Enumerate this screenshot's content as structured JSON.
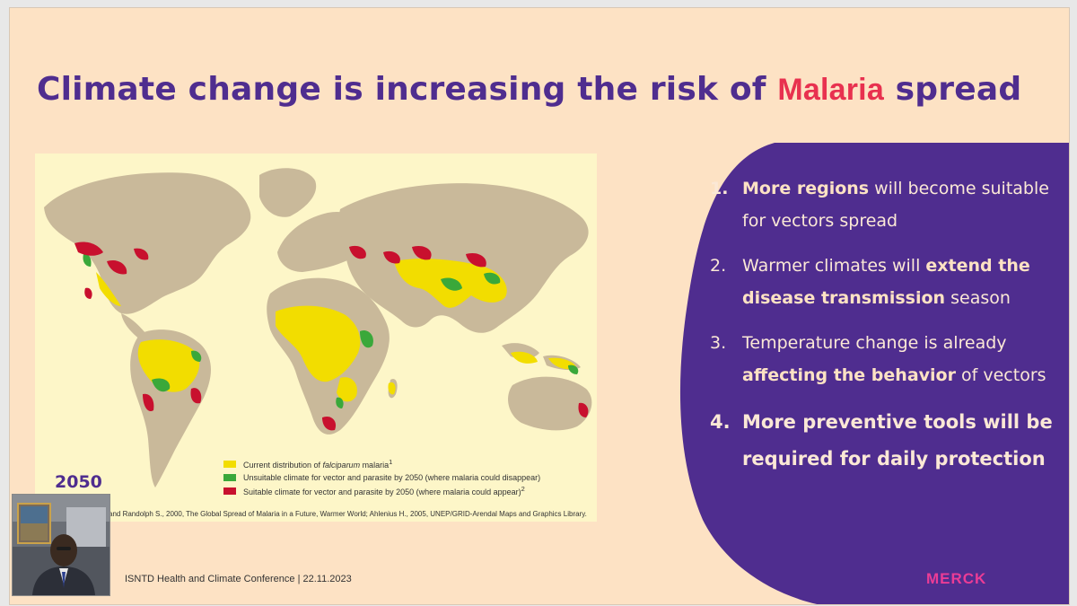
{
  "slide": {
    "title_before": "Climate change is increasing the risk of",
    "title_highlight": "Malaria",
    "title_after": "spread"
  },
  "map": {
    "legend": [
      {
        "text_pre": "Current distribution of ",
        "text_em": "falciparum",
        "text_post": " malaria",
        "sup": "1",
        "color": "#f2dd00"
      },
      {
        "text_pre": "Unsuitable climate for vector and parasite by 2050 (where malaria could disappear)",
        "text_em": "",
        "text_post": "",
        "sup": "",
        "color": "#3aa83a"
      },
      {
        "text_pre": "Suitable climate for vector and parasite by 2050 (where malaria could appear)",
        "text_em": "",
        "text_post": "",
        "sup": "2",
        "color": "#c8102e"
      }
    ],
    "source_text": "and Randolph S., 2000, The Global Spread of Malaria in a Future, Warmer World; Ahlenius H., 2005, UNEP/GRID-Arendal Maps and Graphics Library.",
    "year_label": "2050",
    "land_color": "#c9b99a"
  },
  "points": [
    {
      "num": "1.",
      "parts": [
        {
          "t": "More regions",
          "b": true
        },
        {
          "t": " will become suitable for vectors spread",
          "b": false
        }
      ],
      "big": false,
      "bold_num": true
    },
    {
      "num": "2.",
      "parts": [
        {
          "t": "Warmer climates will ",
          "b": false
        },
        {
          "t": "extend the disease transmission",
          "b": true
        },
        {
          "t": " season",
          "b": false
        }
      ],
      "big": false,
      "bold_num": false
    },
    {
      "num": "3.",
      "parts": [
        {
          "t": "Temperature change is already ",
          "b": false
        },
        {
          "t": "affecting the behavior",
          "b": true
        },
        {
          "t": " of vectors",
          "b": false
        }
      ],
      "big": false,
      "bold_num": false
    },
    {
      "num": "4.",
      "parts": [
        {
          "t": "More preventive tools will be required for daily protection",
          "b": true
        }
      ],
      "big": true,
      "bold_num": true
    }
  ],
  "footer": {
    "conference": "ISNTD Health and Climate Conference | 22.11.2023",
    "logo": "MERCK"
  },
  "colors": {
    "background": "#fde2c4",
    "purple": "#4f2d8f",
    "accent": "#e8314f"
  }
}
